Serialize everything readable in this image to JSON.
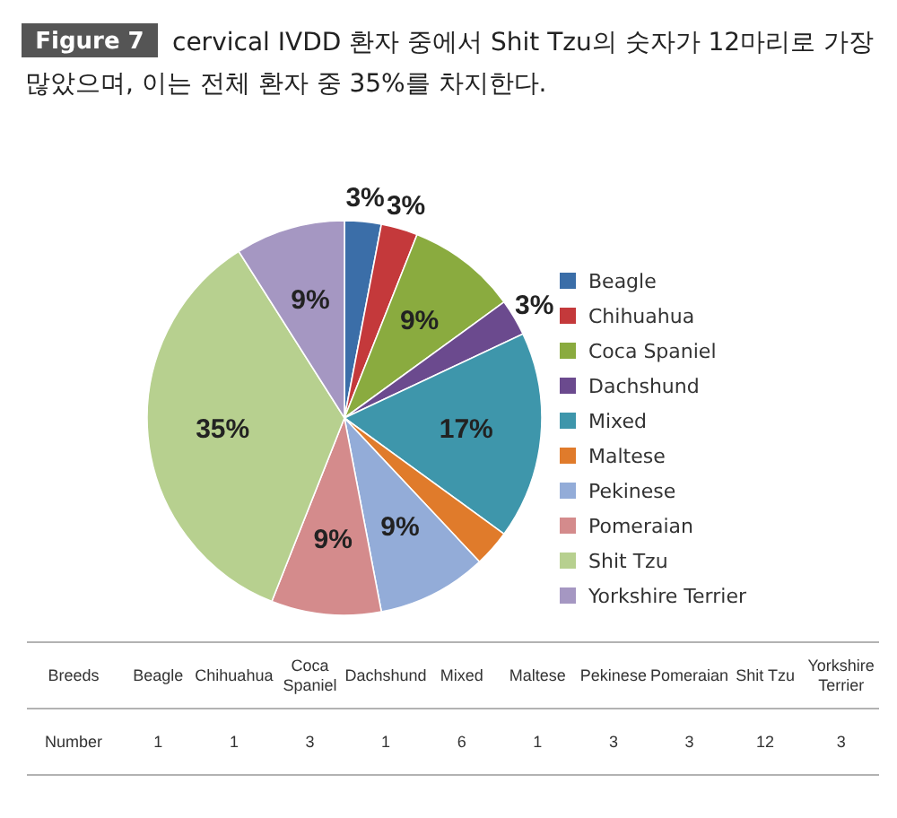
{
  "chart_data": {
    "type": "pie",
    "title": "cervical IVDD 환자 중에서 Shit Tzu의 숫자가 12마리로 가장 많았으며, 이는 전체 환자 중 35%를 차지한다.",
    "annotations": [
      "Figure 7",
      "Breeds",
      "Number",
      "1",
      "1",
      "3",
      "1",
      "6",
      "1",
      "3",
      "3",
      "12",
      "3"
    ],
    "categories": [
      "Beagle",
      "Chihuahua",
      "Coca Spaniel",
      "Dachshund",
      "Mixed",
      "Maltese",
      "Pekinese",
      "Pomeraian",
      "Shit Tzu",
      "Yorkshire Terrier"
    ],
    "values": [
      3,
      3,
      9,
      3,
      17,
      3,
      9,
      9,
      35,
      9
    ],
    "value_labels": [
      "3%",
      "3%",
      "9%",
      "3%",
      "17%",
      null,
      "9%",
      "9%",
      "35%",
      "9%"
    ],
    "colors": [
      "#3b6ea8",
      "#c4393b",
      "#8aab3f",
      "#6b4a8e",
      "#3e96ab",
      "#e07b2b",
      "#93acd8",
      "#d48b8c",
      "#b7d08f",
      "#a597c2"
    ],
    "legend": "right"
  }
}
